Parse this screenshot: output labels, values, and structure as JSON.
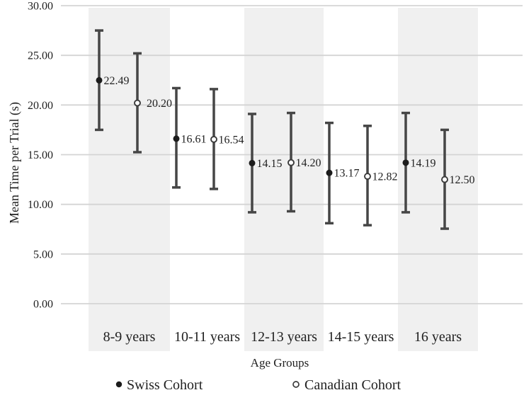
{
  "chart_data": {
    "type": "errorbar",
    "title": "",
    "xlabel": "Age Groups",
    "ylabel": "Mean Time per Trial (s)",
    "categories": [
      "8-9 years",
      "10-11 years",
      "12-13 years",
      "14-15 years",
      "16 years"
    ],
    "y_tick_labels": [
      "30.00",
      "25.00",
      "20.00",
      "15.00",
      "10.00",
      "5.00",
      "0.00"
    ],
    "y_tick_values": [
      30,
      25,
      20,
      15,
      10,
      5,
      0
    ],
    "ylim": [
      0,
      30
    ],
    "grid": true,
    "band_shading": "alternating light-gray bands behind odd age groups",
    "legend_position": "bottom",
    "series": [
      {
        "name": "Swiss Cohort",
        "marker": "filled-circle",
        "means": [
          22.49,
          16.61,
          14.15,
          13.17,
          14.19
        ],
        "value_labels": [
          "22.49",
          "16.61",
          "14.15",
          "13.17",
          "14.19"
        ],
        "upper_whisker": [
          27.5,
          21.7,
          19.1,
          18.2,
          19.2
        ],
        "lower_whisker": [
          17.5,
          11.7,
          9.2,
          8.1,
          9.2
        ]
      },
      {
        "name": "Canadian Cohort",
        "marker": "open-circle",
        "means": [
          20.2,
          16.54,
          14.2,
          12.82,
          12.5
        ],
        "value_labels": [
          "20.20",
          "16.54",
          "14.20",
          "12.82",
          "12.50"
        ],
        "upper_whisker": [
          25.2,
          21.6,
          19.2,
          17.9,
          17.5
        ],
        "lower_whisker": [
          15.25,
          11.55,
          9.3,
          7.9,
          7.55
        ]
      }
    ]
  },
  "colors": {
    "band": "#f0f0f0",
    "gridline": "#d4d4d4",
    "errorbar": "#464646",
    "marker_filled": "#1c1c1c",
    "marker_open_stroke": "#3a3a3a",
    "marker_open_fill": "#ffffff",
    "axis_text": "#1f1f1f",
    "value_label": "#3d3d3d"
  }
}
